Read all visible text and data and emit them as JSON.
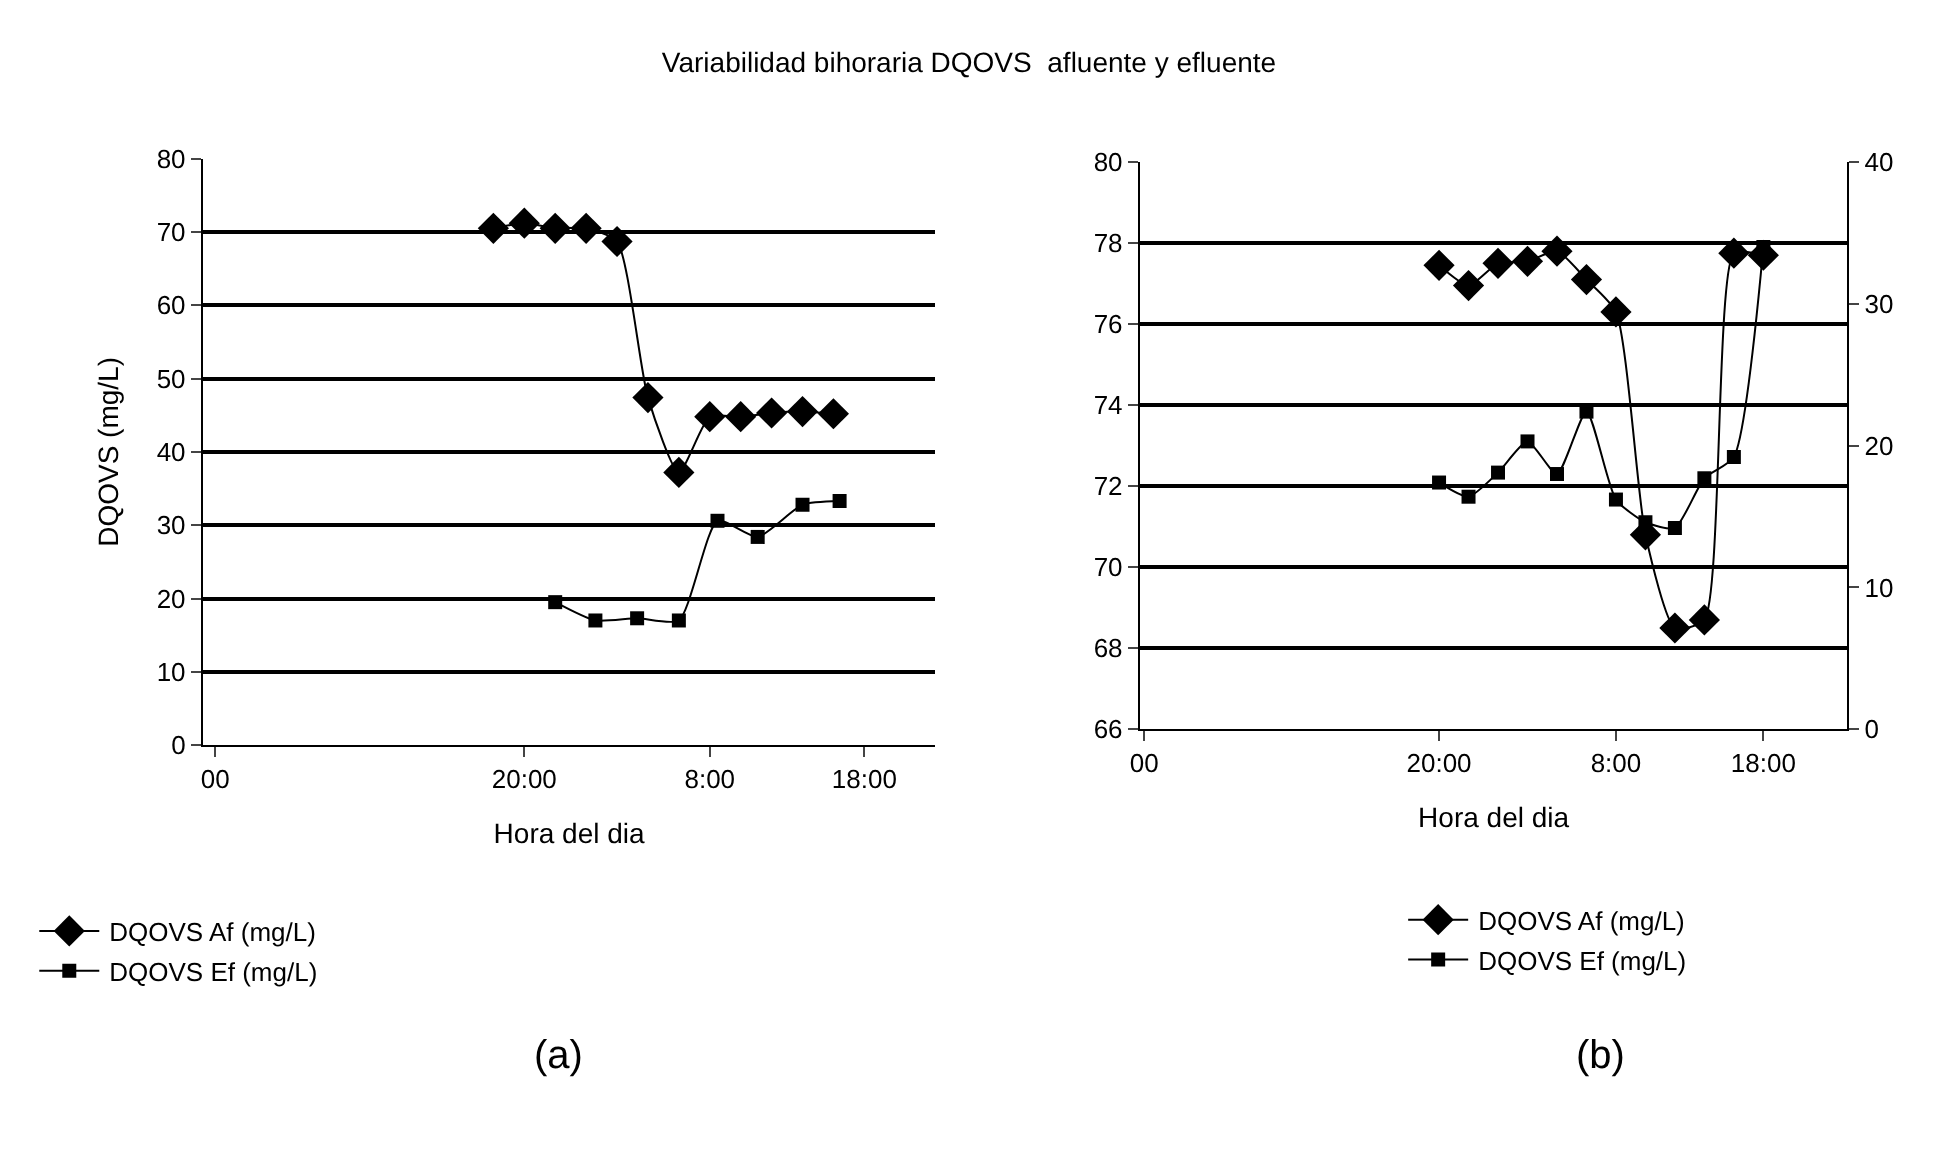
{
  "chart_data": [
    {
      "type": "line",
      "title": "Variabilidad bihoraria DQOVS  afluente y efluente",
      "xlabel": "Hora del dia",
      "ylabel": "DQOVS (mg/L)",
      "xlim": [
        "--01-01T23:12",
        "--01-03T22:36"
      ],
      "xticks": [
        {
          "value": "--01-02T00:00",
          "label": "00"
        },
        {
          "value": "--01-02T20:00",
          "label": "20:00"
        },
        {
          "value": "--01-03T08:00",
          "label": "8:00"
        },
        {
          "value": "--01-03T18:00",
          "label": "18:00"
        }
      ],
      "ylim": [
        0,
        80
      ],
      "yticks": [
        0,
        10,
        20,
        30,
        40,
        50,
        60,
        70,
        80
      ],
      "grid": "y",
      "legend": "bottom left",
      "line_style": "solid",
      "series": [
        {
          "name": "DQOVS Af (mg/L)",
          "color": "#000000",
          "marker": "diamond",
          "x": [
            "--01-02T18:00",
            "--01-02T20:00",
            "--01-02T22:00",
            "--01-03T00:00",
            "--01-03T02:00",
            "--01-03T04:00",
            "--01-03T06:00",
            "--01-03T08:00",
            "--01-03T10:00",
            "--01-03T12:00",
            "--01-03T14:00",
            "--01-03T16:00"
          ],
          "values": [
            70.5,
            71.2,
            70.5,
            70.5,
            68.7,
            47.4,
            37.2,
            44.8,
            44.8,
            45.3,
            45.5,
            45.2
          ]
        },
        {
          "name": "DQOVS Ef (mg/L)",
          "color": "#000000",
          "marker": "square",
          "x": [
            "--01-02T22:00",
            "--01-03T00:36",
            "--01-03T03:18",
            "--01-03T06:00",
            "--01-03T08:30",
            "--01-03T11:06",
            "--01-03T14:00",
            "--01-03T16:24"
          ],
          "values": [
            19.5,
            17.0,
            17.3,
            17.0,
            30.6,
            28.4,
            32.8,
            33.3
          ]
        }
      ],
      "annotations": [
        "(a)"
      ]
    },
    {
      "type": "line",
      "xlabel": "Hora del dia",
      "xlim": [
        "--01-01T23:42",
        "--01-03T23:42"
      ],
      "xticks": [
        {
          "value": "--01-02T00:00",
          "label": "00"
        },
        {
          "value": "--01-02T20:00",
          "label": "20:00"
        },
        {
          "value": "--01-03T08:00",
          "label": "8:00"
        },
        {
          "value": "--01-03T18:00",
          "label": "18:00"
        }
      ],
      "ylim": [
        66,
        80
      ],
      "yticks": [
        66,
        68,
        70,
        72,
        74,
        76,
        78,
        80
      ],
      "y2lim": [
        0,
        40
      ],
      "y2ticks": [
        0,
        10,
        20,
        30,
        40
      ],
      "grid": "y",
      "legend": "bottom right",
      "line_style": "solid",
      "series": [
        {
          "name": "DQOVS Af (mg/L)",
          "color": "#000000",
          "marker": "diamond",
          "x": [
            "--01-02T20:00",
            "--01-02T22:00",
            "--01-03T00:00",
            "--01-03T02:00",
            "--01-03T04:00",
            "--01-03T06:00",
            "--01-03T08:00",
            "--01-03T10:00",
            "--01-03T12:00",
            "--01-03T14:00",
            "--01-03T16:00",
            "--01-03T18:00"
          ],
          "values": [
            77.45,
            76.95,
            77.5,
            77.55,
            77.8,
            77.1,
            76.3,
            70.8,
            68.5,
            68.7,
            77.75,
            77.7
          ]
        },
        {
          "name": "DQOVS Ef (mg/L)",
          "color": "#000000",
          "marker": "square",
          "axis": "y2",
          "x": [
            "--01-02T20:00",
            "--01-02T22:00",
            "--01-03T00:00",
            "--01-03T02:00",
            "--01-03T04:00",
            "--01-03T06:00",
            "--01-03T08:00",
            "--01-03T10:00",
            "--01-03T12:00",
            "--01-03T14:00",
            "--01-03T16:00",
            "--01-03T18:00"
          ],
          "values": [
            17.4,
            16.4,
            18.1,
            20.3,
            18.0,
            22.4,
            16.2,
            14.6,
            14.2,
            17.7,
            19.2,
            34
          ]
        }
      ],
      "annotations": [
        "(b)"
      ]
    }
  ]
}
